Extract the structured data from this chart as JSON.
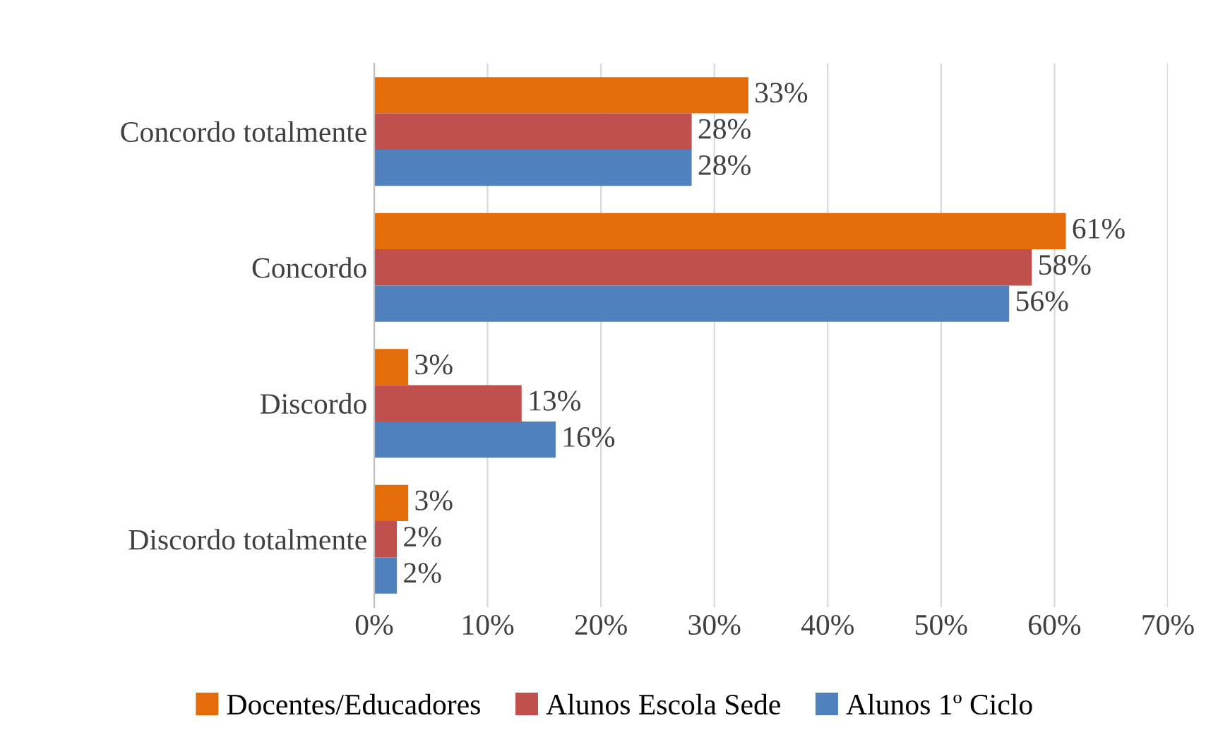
{
  "chart_data": {
    "type": "bar",
    "orientation": "horizontal",
    "categories": [
      "Concordo totalmente",
      "Concordo",
      "Discordo",
      "Discordo totalmente"
    ],
    "series": [
      {
        "name": "Docentes/Educadores",
        "color": "#e46c0a",
        "values": [
          33,
          61,
          3,
          3
        ],
        "value_labels": [
          "33%",
          "61%",
          "3%",
          "3%"
        ]
      },
      {
        "name": "Alunos Escola Sede",
        "color": "#c0504d",
        "values": [
          28,
          58,
          13,
          2
        ],
        "value_labels": [
          "28%",
          "58%",
          "13%",
          "2%"
        ]
      },
      {
        "name": "Alunos 1º Ciclo",
        "color": "#4f81bd",
        "values": [
          28,
          56,
          16,
          2
        ],
        "value_labels": [
          "28%",
          "56%",
          "16%",
          "2%"
        ]
      }
    ],
    "xlim": [
      0,
      70
    ],
    "xticks": [
      {
        "value": 0,
        "label": "0%"
      },
      {
        "value": 10,
        "label": "10%"
      },
      {
        "value": 20,
        "label": "20%"
      },
      {
        "value": 30,
        "label": "30%"
      },
      {
        "value": 40,
        "label": "40%"
      },
      {
        "value": 50,
        "label": "50%"
      },
      {
        "value": 60,
        "label": "60%"
      },
      {
        "value": 70,
        "label": "70%"
      }
    ],
    "grid": "x",
    "legend": "bottom"
  }
}
